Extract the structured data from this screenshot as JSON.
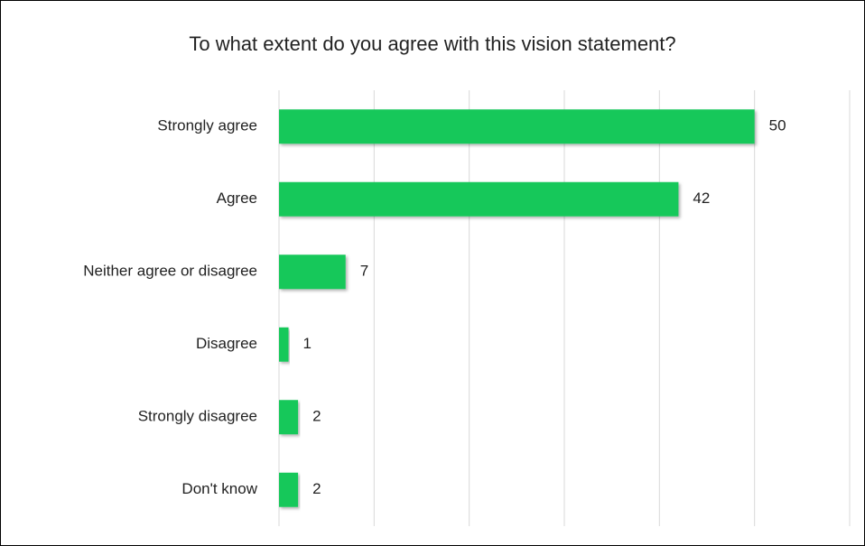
{
  "chart_data": {
    "type": "bar",
    "orientation": "horizontal",
    "title": "To what extent do you agree with this vision statement?",
    "categories": [
      "Strongly agree",
      "Agree",
      "Neither agree or disagree",
      "Disagree",
      "Strongly disagree",
      "Don't know"
    ],
    "values": [
      50,
      42,
      7,
      1,
      2,
      2
    ],
    "color": "#14c85a",
    "xlim": [
      0,
      60
    ],
    "xticks": [
      0,
      10,
      20,
      30,
      40,
      50,
      60
    ],
    "grid": true
  }
}
